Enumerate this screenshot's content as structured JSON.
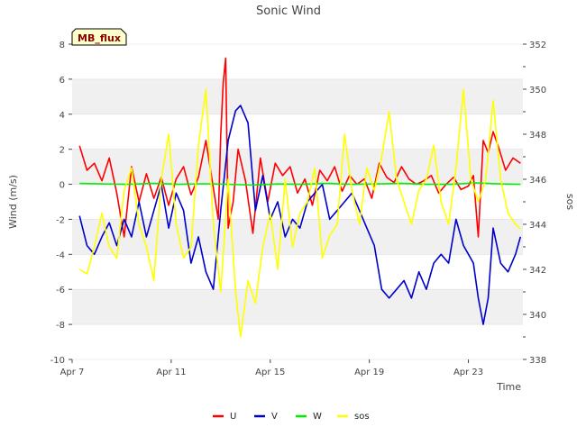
{
  "chart_data": {
    "type": "line",
    "title": "Sonic Wind",
    "badge": "MB_flux",
    "xlabel": "Time",
    "ylabel": "Wind (m/s)",
    "ylabel_right": "sos",
    "x_range": [
      7.0,
      25.2
    ],
    "ylim": [
      -10,
      8
    ],
    "ylim_right": [
      338,
      352
    ],
    "x_ticks": [
      {
        "x": 7,
        "label": "Apr 7"
      },
      {
        "x": 11,
        "label": "Apr 11"
      },
      {
        "x": 15,
        "label": "Apr 15"
      },
      {
        "x": 19,
        "label": "Apr 19"
      },
      {
        "x": 23,
        "label": "Apr 23"
      }
    ],
    "y_ticks": [
      -10,
      -8,
      -6,
      -4,
      -2,
      0,
      2,
      4,
      6,
      8
    ],
    "y_ticks_right": [
      338,
      340,
      342,
      344,
      346,
      348,
      350,
      352
    ],
    "legend": [
      {
        "name": "U",
        "color": "#ff0000"
      },
      {
        "name": "V",
        "color": "#0000cc"
      },
      {
        "name": "W",
        "color": "#00ee00"
      },
      {
        "name": "sos",
        "color": "#ffff00"
      }
    ],
    "series": [
      {
        "name": "U",
        "axis": "left",
        "color": "#ff0000",
        "x": [
          7.3,
          7.6,
          7.9,
          8.2,
          8.5,
          8.8,
          9.1,
          9.4,
          9.7,
          10.0,
          10.3,
          10.6,
          10.9,
          11.2,
          11.5,
          11.8,
          12.1,
          12.4,
          12.7,
          12.9,
          13.0,
          13.1,
          13.2,
          13.3,
          13.5,
          13.7,
          14.0,
          14.3,
          14.6,
          14.9,
          15.2,
          15.5,
          15.8,
          16.1,
          16.4,
          16.7,
          17.0,
          17.3,
          17.6,
          17.9,
          18.2,
          18.5,
          18.8,
          19.1,
          19.4,
          19.7,
          20.0,
          20.3,
          20.6,
          20.9,
          21.2,
          21.5,
          21.8,
          22.1,
          22.4,
          22.7,
          23.0,
          23.2,
          23.4,
          23.6,
          23.8,
          24.0,
          24.2,
          24.5,
          24.8,
          25.1
        ],
        "values": [
          2.2,
          0.8,
          1.2,
          0.2,
          1.5,
          -0.5,
          -3.0,
          1.0,
          -1.0,
          0.6,
          -0.8,
          0.4,
          -1.2,
          0.3,
          1.0,
          -0.6,
          0.4,
          2.5,
          -0.2,
          -2.0,
          2.8,
          5.8,
          7.2,
          -2.5,
          -1.0,
          2.0,
          0.2,
          -2.8,
          1.5,
          -1.0,
          1.2,
          0.5,
          1.0,
          -0.5,
          0.3,
          -1.2,
          0.8,
          0.2,
          1.0,
          -0.4,
          0.5,
          0.0,
          0.3,
          -0.8,
          1.2,
          0.4,
          0.1,
          1.0,
          0.3,
          0.0,
          0.2,
          0.5,
          -0.5,
          0.0,
          0.4,
          -0.3,
          -0.1,
          0.5,
          -3.0,
          2.5,
          1.8,
          3.0,
          2.2,
          0.8,
          1.5,
          1.2
        ]
      },
      {
        "name": "V",
        "axis": "left",
        "color": "#0000cc",
        "x": [
          7.3,
          7.6,
          7.9,
          8.2,
          8.5,
          8.8,
          9.1,
          9.4,
          9.7,
          10.0,
          10.3,
          10.6,
          10.9,
          11.2,
          11.5,
          11.8,
          12.1,
          12.4,
          12.7,
          13.0,
          13.3,
          13.6,
          13.8,
          14.1,
          14.4,
          14.7,
          15.0,
          15.3,
          15.6,
          15.9,
          16.2,
          16.5,
          16.8,
          17.1,
          17.4,
          17.7,
          18.0,
          18.3,
          18.6,
          18.9,
          19.2,
          19.5,
          19.8,
          20.1,
          20.4,
          20.7,
          21.0,
          21.3,
          21.6,
          21.9,
          22.2,
          22.5,
          22.8,
          23.0,
          23.2,
          23.4,
          23.6,
          23.8,
          24.0,
          24.3,
          24.6,
          24.9,
          25.1
        ],
        "values": [
          -1.8,
          -3.5,
          -4.0,
          -3.0,
          -2.2,
          -3.5,
          -2.0,
          -3.0,
          -1.0,
          -3.0,
          -1.5,
          0.0,
          -2.5,
          -0.5,
          -1.5,
          -4.5,
          -3.0,
          -5.0,
          -6.0,
          -1.5,
          2.5,
          4.2,
          4.5,
          3.5,
          -1.5,
          0.5,
          -2.0,
          -1.0,
          -3.0,
          -2.0,
          -2.5,
          -1.0,
          -0.5,
          0.0,
          -2.0,
          -1.5,
          -1.0,
          -0.5,
          -1.5,
          -2.5,
          -3.5,
          -6.0,
          -6.5,
          -6.0,
          -5.5,
          -6.5,
          -5.0,
          -6.0,
          -4.5,
          -4.0,
          -4.5,
          -2.0,
          -3.5,
          -4.0,
          -4.5,
          -6.5,
          -8.0,
          -6.5,
          -2.5,
          -4.5,
          -5.0,
          -4.0,
          -3.0
        ]
      },
      {
        "name": "W",
        "axis": "left",
        "color": "#00ee00",
        "x": [
          7.3,
          8.3,
          9.3,
          10.3,
          11.3,
          12.3,
          13.3,
          14.3,
          15.3,
          16.3,
          17.3,
          18.3,
          19.3,
          20.3,
          21.3,
          22.3,
          23.3,
          24.3,
          25.1
        ],
        "values": [
          0.05,
          0.02,
          0.0,
          0.05,
          0.0,
          0.03,
          0.0,
          -0.05,
          0.02,
          0.0,
          0.05,
          0.0,
          0.02,
          0.05,
          0.0,
          0.0,
          0.08,
          0.02,
          0.0
        ]
      },
      {
        "name": "sos",
        "axis": "right",
        "color": "#ffff00",
        "x": [
          7.3,
          7.6,
          7.9,
          8.2,
          8.5,
          8.8,
          9.1,
          9.4,
          9.7,
          10.0,
          10.3,
          10.6,
          10.9,
          11.2,
          11.5,
          11.8,
          12.1,
          12.4,
          12.7,
          13.0,
          13.3,
          13.6,
          13.8,
          14.1,
          14.4,
          14.7,
          15.0,
          15.3,
          15.6,
          15.9,
          16.2,
          16.5,
          16.8,
          17.1,
          17.4,
          17.7,
          18.0,
          18.3,
          18.6,
          18.9,
          19.2,
          19.5,
          19.8,
          20.1,
          20.4,
          20.7,
          21.0,
          21.3,
          21.6,
          21.9,
          22.2,
          22.5,
          22.8,
          23.1,
          23.4,
          23.7,
          24.0,
          24.3,
          24.6,
          24.9,
          25.1
        ],
        "values": [
          342.0,
          341.8,
          343.0,
          344.5,
          343.0,
          342.5,
          345.5,
          346.5,
          344.0,
          343.0,
          341.5,
          346.0,
          348.0,
          344.0,
          342.5,
          343.0,
          347.5,
          350.0,
          344.0,
          341.0,
          346.0,
          341.0,
          339.0,
          341.5,
          340.5,
          343.0,
          344.5,
          342.0,
          346.0,
          343.0,
          344.5,
          345.0,
          346.5,
          342.5,
          343.5,
          344.0,
          348.0,
          345.5,
          344.0,
          346.5,
          345.5,
          347.0,
          349.0,
          346.0,
          345.0,
          344.0,
          345.5,
          346.0,
          347.5,
          345.0,
          344.0,
          346.5,
          350.0,
          346.0,
          345.0,
          346.0,
          349.5,
          346.0,
          344.5,
          344.0,
          343.8
        ]
      }
    ]
  }
}
